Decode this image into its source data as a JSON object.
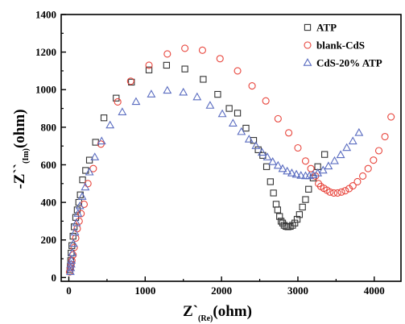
{
  "chart_data": {
    "type": "scatter",
    "xlabel": "Z`",
    "xlabel_sub": "(Re)",
    "xlabel_unit": "(ohm)",
    "ylabel": "-Z``",
    "ylabel_sub": "(Im)",
    "ylabel_unit": "(ohm)",
    "xlim": [
      -100,
      4350
    ],
    "ylim": [
      -20,
      1400
    ],
    "xticks": [
      0,
      1000,
      2000,
      3000,
      4000
    ],
    "yticks": [
      0,
      200,
      400,
      600,
      800,
      1000,
      1200,
      1400
    ],
    "grid": false,
    "legend_position": "top-right",
    "series": [
      {
        "name": "ATP",
        "marker": "square",
        "color": "#333333",
        "points": [
          [
            15,
            40
          ],
          [
            20,
            60
          ],
          [
            25,
            90
          ],
          [
            30,
            130
          ],
          [
            40,
            170
          ],
          [
            55,
            220
          ],
          [
            70,
            270
          ],
          [
            90,
            320
          ],
          [
            110,
            360
          ],
          [
            130,
            400
          ],
          [
            150,
            440
          ],
          [
            180,
            520
          ],
          [
            220,
            570
          ],
          [
            270,
            625
          ],
          [
            350,
            720
          ],
          [
            460,
            850
          ],
          [
            620,
            955
          ],
          [
            820,
            1040
          ],
          [
            1050,
            1105
          ],
          [
            1280,
            1130
          ],
          [
            1520,
            1110
          ],
          [
            1760,
            1055
          ],
          [
            1950,
            975
          ],
          [
            2100,
            900
          ],
          [
            2210,
            875
          ],
          [
            2320,
            795
          ],
          [
            2420,
            730
          ],
          [
            2480,
            680
          ],
          [
            2540,
            650
          ],
          [
            2590,
            590
          ],
          [
            2640,
            510
          ],
          [
            2680,
            450
          ],
          [
            2715,
            390
          ],
          [
            2735,
            360
          ],
          [
            2760,
            325
          ],
          [
            2780,
            300
          ],
          [
            2800,
            290
          ],
          [
            2820,
            278
          ],
          [
            2845,
            272
          ],
          [
            2870,
            270
          ],
          [
            2900,
            272
          ],
          [
            2930,
            278
          ],
          [
            2960,
            290
          ],
          [
            2990,
            310
          ],
          [
            3020,
            335
          ],
          [
            3060,
            375
          ],
          [
            3100,
            415
          ],
          [
            3140,
            470
          ],
          [
            3200,
            530
          ],
          [
            3260,
            590
          ],
          [
            3350,
            655
          ]
        ]
      },
      {
        "name": "blank-CdS",
        "marker": "circle",
        "color": "#e8453c",
        "points": [
          [
            10,
            30
          ],
          [
            20,
            50
          ],
          [
            30,
            70
          ],
          [
            40,
            90
          ],
          [
            55,
            120
          ],
          [
            70,
            160
          ],
          [
            90,
            210
          ],
          [
            110,
            260
          ],
          [
            135,
            300
          ],
          [
            160,
            340
          ],
          [
            200,
            390
          ],
          [
            250,
            500
          ],
          [
            320,
            580
          ],
          [
            420,
            710
          ],
          [
            640,
            935
          ],
          [
            810,
            1045
          ],
          [
            1050,
            1130
          ],
          [
            1290,
            1190
          ],
          [
            1520,
            1220
          ],
          [
            1750,
            1210
          ],
          [
            1980,
            1165
          ],
          [
            2210,
            1100
          ],
          [
            2400,
            1020
          ],
          [
            2580,
            940
          ],
          [
            2740,
            845
          ],
          [
            2880,
            770
          ],
          [
            3000,
            690
          ],
          [
            3100,
            620
          ],
          [
            3170,
            580
          ],
          [
            3230,
            540
          ],
          [
            3270,
            500
          ],
          [
            3300,
            485
          ],
          [
            3340,
            475
          ],
          [
            3380,
            465
          ],
          [
            3420,
            455
          ],
          [
            3470,
            450
          ],
          [
            3520,
            450
          ],
          [
            3570,
            455
          ],
          [
            3620,
            462
          ],
          [
            3670,
            473
          ],
          [
            3720,
            488
          ],
          [
            3780,
            510
          ],
          [
            3850,
            540
          ],
          [
            3920,
            580
          ],
          [
            3990,
            625
          ],
          [
            4060,
            675
          ],
          [
            4140,
            750
          ],
          [
            4220,
            855
          ]
        ]
      },
      {
        "name": "CdS-20% ATP",
        "marker": "triangle",
        "color": "#5a6cc0",
        "points": [
          [
            20,
            30
          ],
          [
            25,
            50
          ],
          [
            30,
            70
          ],
          [
            35,
            90
          ],
          [
            45,
            130
          ],
          [
            60,
            180
          ],
          [
            80,
            240
          ],
          [
            100,
            290
          ],
          [
            120,
            340
          ],
          [
            145,
            380
          ],
          [
            175,
            430
          ],
          [
            215,
            480
          ],
          [
            270,
            560
          ],
          [
            340,
            640
          ],
          [
            430,
            725
          ],
          [
            540,
            810
          ],
          [
            700,
            880
          ],
          [
            880,
            935
          ],
          [
            1080,
            975
          ],
          [
            1290,
            995
          ],
          [
            1500,
            985
          ],
          [
            1680,
            960
          ],
          [
            1850,
            915
          ],
          [
            2010,
            870
          ],
          [
            2150,
            820
          ],
          [
            2260,
            775
          ],
          [
            2360,
            735
          ],
          [
            2450,
            700
          ],
          [
            2530,
            665
          ],
          [
            2600,
            640
          ],
          [
            2670,
            615
          ],
          [
            2740,
            595
          ],
          [
            2800,
            578
          ],
          [
            2860,
            565
          ],
          [
            2920,
            555
          ],
          [
            2980,
            548
          ],
          [
            3040,
            542
          ],
          [
            3100,
            540
          ],
          [
            3150,
            540
          ],
          [
            3200,
            545
          ],
          [
            3260,
            555
          ],
          [
            3330,
            570
          ],
          [
            3400,
            592
          ],
          [
            3480,
            620
          ],
          [
            3560,
            652
          ],
          [
            3640,
            690
          ],
          [
            3720,
            725
          ],
          [
            3800,
            770
          ]
        ]
      }
    ]
  }
}
